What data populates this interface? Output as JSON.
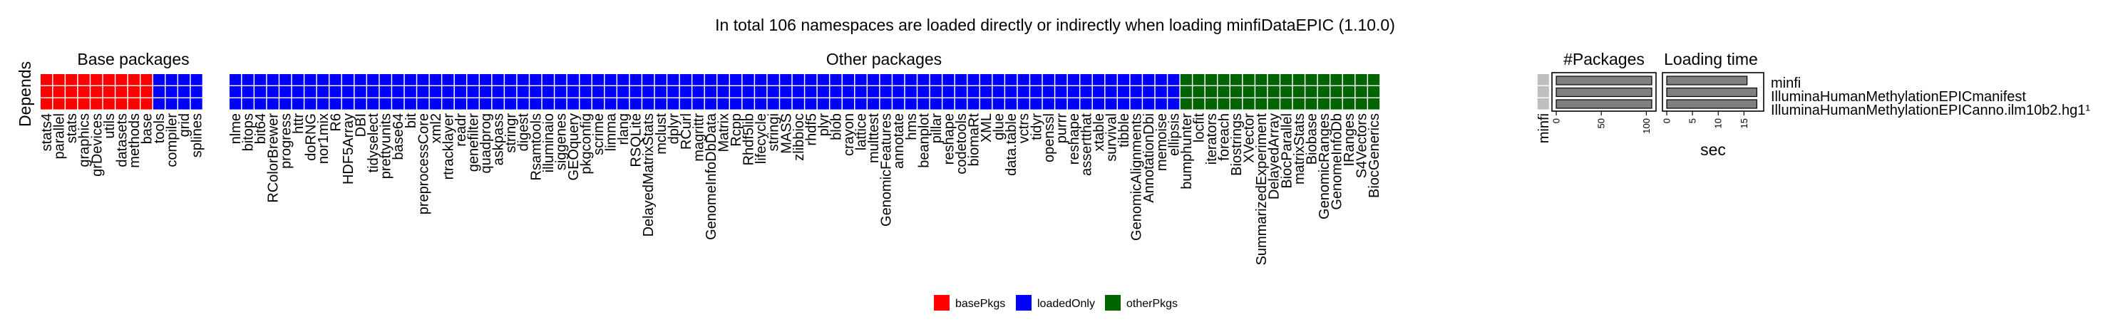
{
  "chart_data": {
    "type": "heatmap",
    "title": "In total 106 namespaces are loaded directly or indirectly when loading minfiDataEPIC (1.10.0)",
    "ylabel": "Depends",
    "groups": [
      {
        "label": "Base packages",
        "category": "basePkgs",
        "columns": [
          "stats4",
          "parallel",
          "stats",
          "graphics",
          "grDevices",
          "utils",
          "datasets",
          "methods",
          "base"
        ]
      },
      {
        "label": "",
        "category": "loadedOnly",
        "columns": [
          "tools",
          "compiler",
          "grid",
          "splines"
        ]
      },
      {
        "label": "Other packages",
        "category": "loadedOnly",
        "columns": [
          "nlme",
          "bitops",
          "bit64",
          "RColorBrewer",
          "progress",
          "httr",
          "doRNG",
          "nor1mix",
          "R6",
          "HDF5Array",
          "DBI",
          "tidyselect",
          "prettyunits",
          "base64",
          "bit",
          "preprocessCore",
          "xml2",
          "rtracklayer",
          "readr",
          "genefilter",
          "quadprog",
          "askpass",
          "stringr",
          "digest",
          "Rsamtools",
          "illuminaio",
          "siggenes",
          "GEOquery",
          "pkgconfig",
          "scrime",
          "limma",
          "rlang",
          "RSQLite",
          "DelayedMatrixStats",
          "mclust",
          "dplyr",
          "RCurl",
          "magrittr",
          "GenomeInfoDbData",
          "Matrix",
          "Rcpp",
          "Rhdf5lib",
          "lifecycle",
          "stringi",
          "MASS",
          "zlibbioc",
          "rhdf5",
          "plyr",
          "blob",
          "crayon",
          "lattice",
          "multtest",
          "GenomicFeatures",
          "annotate",
          "hms",
          "beanplot",
          "pillar",
          "reshape",
          "codetools",
          "biomaRt",
          "XML",
          "glue",
          "data.table",
          "vctrs",
          "tidyr",
          "openssl",
          "purrr",
          "reshape",
          "assertthat",
          "xtable",
          "survival",
          "tibble",
          "GenomicAlignments",
          "AnnotationDbi",
          "memoise",
          "ellipsis"
        ]
      },
      {
        "label": "",
        "category": "otherPkgs",
        "columns": [
          "bumphunter",
          "locfit",
          "iterators",
          "foreach",
          "Biostrings",
          "XVector",
          "SummarizedExperiment",
          "DelayedArray",
          "BiocParallel",
          "matrixStats",
          "Biobase",
          "GenomicRanges",
          "GenomeInfoDb",
          "IRanges",
          "S4Vectors",
          "BiocGenerics"
        ]
      },
      {
        "label": "",
        "category": "none",
        "columns": [
          "minfi"
        ]
      }
    ],
    "rows": [
      "minfi",
      "IlluminaHumanMethylationEPICmanifest",
      "IlluminaHumanMethylationEPICanno.ilm10b2.hg19"
    ],
    "row_labels_shown": [
      "minfi",
      "IlluminaHumanMethylationEPICmanifest",
      "IlluminaHumanMethylationEPICanno.ilm10b2.hg1¹"
    ],
    "colors": {
      "basePkgs": "#ff0000",
      "loadedOnly": "#0000ff",
      "otherPkgs": "#006400",
      "none": "#bebebe",
      "bar": "#808080"
    },
    "legend": {
      "position": "bottom",
      "items": [
        {
          "category": "basePkgs",
          "label": "basePkgs"
        },
        {
          "category": "loadedOnly",
          "label": "loadedOnly"
        },
        {
          "category": "otherPkgs",
          "label": "otherPkgs"
        }
      ]
    },
    "packages_panel": {
      "title": "#Packages",
      "ticks": [
        "0",
        "50",
        "100"
      ],
      "xlim": [
        0,
        106
      ],
      "values": [
        106,
        106,
        106
      ]
    },
    "time_panel": {
      "title": "Loading time",
      "xlabel": "sec",
      "ticks": [
        "0",
        "5",
        "10",
        "15"
      ],
      "xlim": [
        0,
        18
      ],
      "values": [
        15.6,
        17.5,
        17.5
      ]
    }
  }
}
